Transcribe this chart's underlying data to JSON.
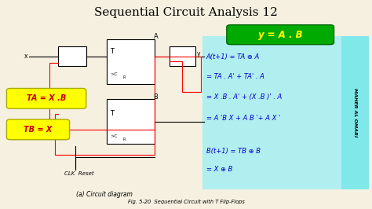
{
  "title": "Sequential Circuit Analysis 12",
  "subtitle": "Fig. 5-20  Sequential Circuit with T Flip-Flops",
  "caption": "(a) Circuit diagram",
  "bg_color": "#f5f0e0",
  "right_panel_color": "#b0eef0",
  "green_box_color": "#00aa00",
  "green_box_text": "y = A . B",
  "yellow_box1_text": "TA = X .B",
  "yellow_box2_text": "TB = X",
  "yellow_box_color": "#ffff00",
  "side_label": "MAHER AL OMARI",
  "side_bg": "#80e8e8",
  "equations_A": [
    "A(t+1) = TA ⊕ A",
    "= TA . A' + TA' . A",
    "= X .B . A' + (X .B )' . A",
    "= A 'B X + A B '+ A X '"
  ],
  "equations_B": [
    "B(t+1) = TB ⊕ B",
    "= X ⊕ B"
  ],
  "clk_label": "CLK  Reset"
}
